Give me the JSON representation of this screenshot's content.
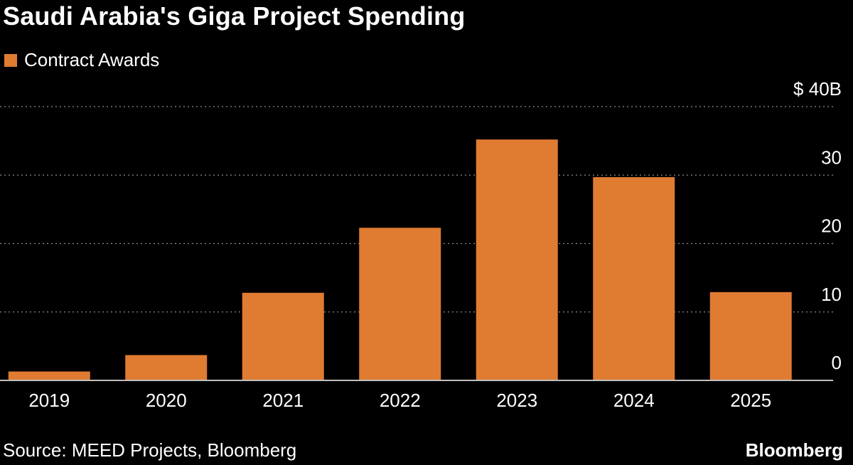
{
  "colors": {
    "background": "#000000",
    "bar": "#E07B32",
    "text": "#FFFFFF",
    "gridline": "#8C8C8C",
    "axis": "#BFBFBF"
  },
  "footer": {
    "source": "Source: MEED Projects, Bloomberg",
    "brand": "Bloomberg"
  },
  "chart_data": {
    "type": "bar",
    "title": "Saudi Arabia's Giga Project Spending",
    "legend": [
      "Contract Awards"
    ],
    "legend_position": "top-left",
    "categories": [
      "2019",
      "2020",
      "2021",
      "2022",
      "2023",
      "2024",
      "2025"
    ],
    "series": [
      {
        "name": "Contract Awards",
        "values": [
          1.3,
          3.7,
          12.8,
          22.3,
          35.2,
          29.7,
          12.9
        ]
      }
    ],
    "y_unit_label": "$ 40B",
    "y_ticks": [
      0,
      10,
      20,
      30,
      40
    ],
    "y_tick_labels": [
      "0",
      "10",
      "20",
      "30",
      "$ 40B"
    ],
    "ylim": [
      0,
      40
    ],
    "y_axis_side": "right",
    "grid": true,
    "xlabel": "",
    "ylabel": ""
  }
}
